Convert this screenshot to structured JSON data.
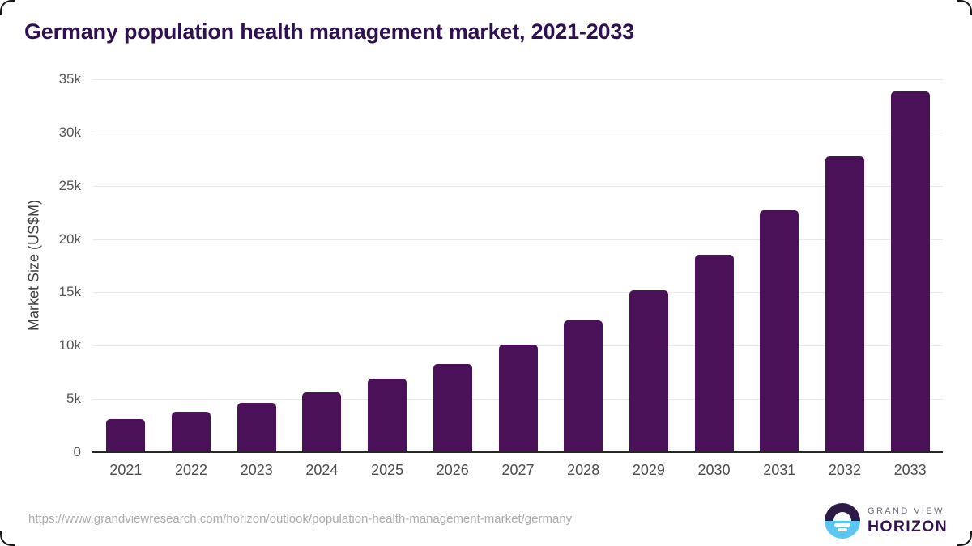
{
  "chart_data": {
    "type": "bar",
    "title": "Germany population health management market, 2021-2033",
    "ylabel": "Market Size (US$M)",
    "xlabel": "",
    "categories": [
      "2021",
      "2022",
      "2023",
      "2024",
      "2025",
      "2026",
      "2027",
      "2028",
      "2029",
      "2030",
      "2031",
      "2032",
      "2033"
    ],
    "values": [
      3100,
      3800,
      4600,
      5600,
      6900,
      8300,
      10100,
      12400,
      15200,
      18500,
      22700,
      27800,
      33900
    ],
    "ylim": [
      0,
      35000
    ],
    "yticks": [
      {
        "value": 0,
        "label": "0"
      },
      {
        "value": 5000,
        "label": "5k"
      },
      {
        "value": 10000,
        "label": "10k"
      },
      {
        "value": 15000,
        "label": "15k"
      },
      {
        "value": 20000,
        "label": "20k"
      },
      {
        "value": 25000,
        "label": "25k"
      },
      {
        "value": 30000,
        "label": "30k"
      },
      {
        "value": 35000,
        "label": "35k"
      }
    ],
    "grid": true,
    "legend_position": "none",
    "bar_color": "#4a1158"
  },
  "colors": {
    "title": "#2f1050",
    "gridline": "#e9e9e9",
    "axis_line": "#262626",
    "tick_text": "#555555",
    "logo_purple": "#2e1a47",
    "logo_blue": "#5bc6f2"
  },
  "footer": {
    "source_url": "https://www.grandviewresearch.com/horizon/outlook/population-health-management-market/germany",
    "brand_top": "GRAND VIEW",
    "brand_bottom": "HORIZON"
  }
}
